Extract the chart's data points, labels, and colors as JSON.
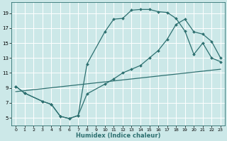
{
  "xlabel": "Humidex (Indice chaleur)",
  "bg_color": "#cce8e8",
  "grid_color": "#ffffff",
  "line_color": "#2d7070",
  "xlim": [
    -0.5,
    23.5
  ],
  "ylim": [
    4,
    20.5
  ],
  "xticks": [
    0,
    1,
    2,
    3,
    4,
    5,
    6,
    7,
    8,
    9,
    10,
    11,
    12,
    13,
    14,
    15,
    16,
    17,
    18,
    19,
    20,
    21,
    22,
    23
  ],
  "yticks": [
    5,
    7,
    9,
    11,
    13,
    15,
    17,
    19
  ],
  "line1_x": [
    0,
    1,
    3,
    4,
    5,
    6,
    7,
    8,
    10,
    11,
    12,
    13,
    14,
    15,
    16,
    17,
    18,
    19,
    20,
    21,
    22,
    23
  ],
  "line1_y": [
    9.2,
    8.3,
    7.2,
    6.8,
    5.2,
    4.9,
    5.3,
    12.2,
    16.5,
    18.2,
    18.3,
    19.4,
    19.5,
    19.5,
    19.2,
    19.1,
    18.3,
    16.6,
    13.5,
    15.0,
    13.0,
    12.5
  ],
  "line2_x": [
    0,
    1,
    3,
    4,
    5,
    6,
    7,
    8,
    10,
    11,
    12,
    13,
    14,
    15,
    16,
    17,
    18,
    19,
    20,
    21,
    22,
    23
  ],
  "line2_y": [
    9.2,
    8.3,
    7.2,
    6.8,
    5.2,
    4.9,
    5.3,
    8.2,
    9.5,
    10.2,
    11.0,
    11.5,
    12.0,
    13.0,
    14.0,
    15.5,
    17.5,
    18.2,
    16.5,
    16.2,
    15.2,
    13.0
  ],
  "line3_x": [
    0,
    23
  ],
  "line3_y": [
    8.5,
    11.5
  ]
}
